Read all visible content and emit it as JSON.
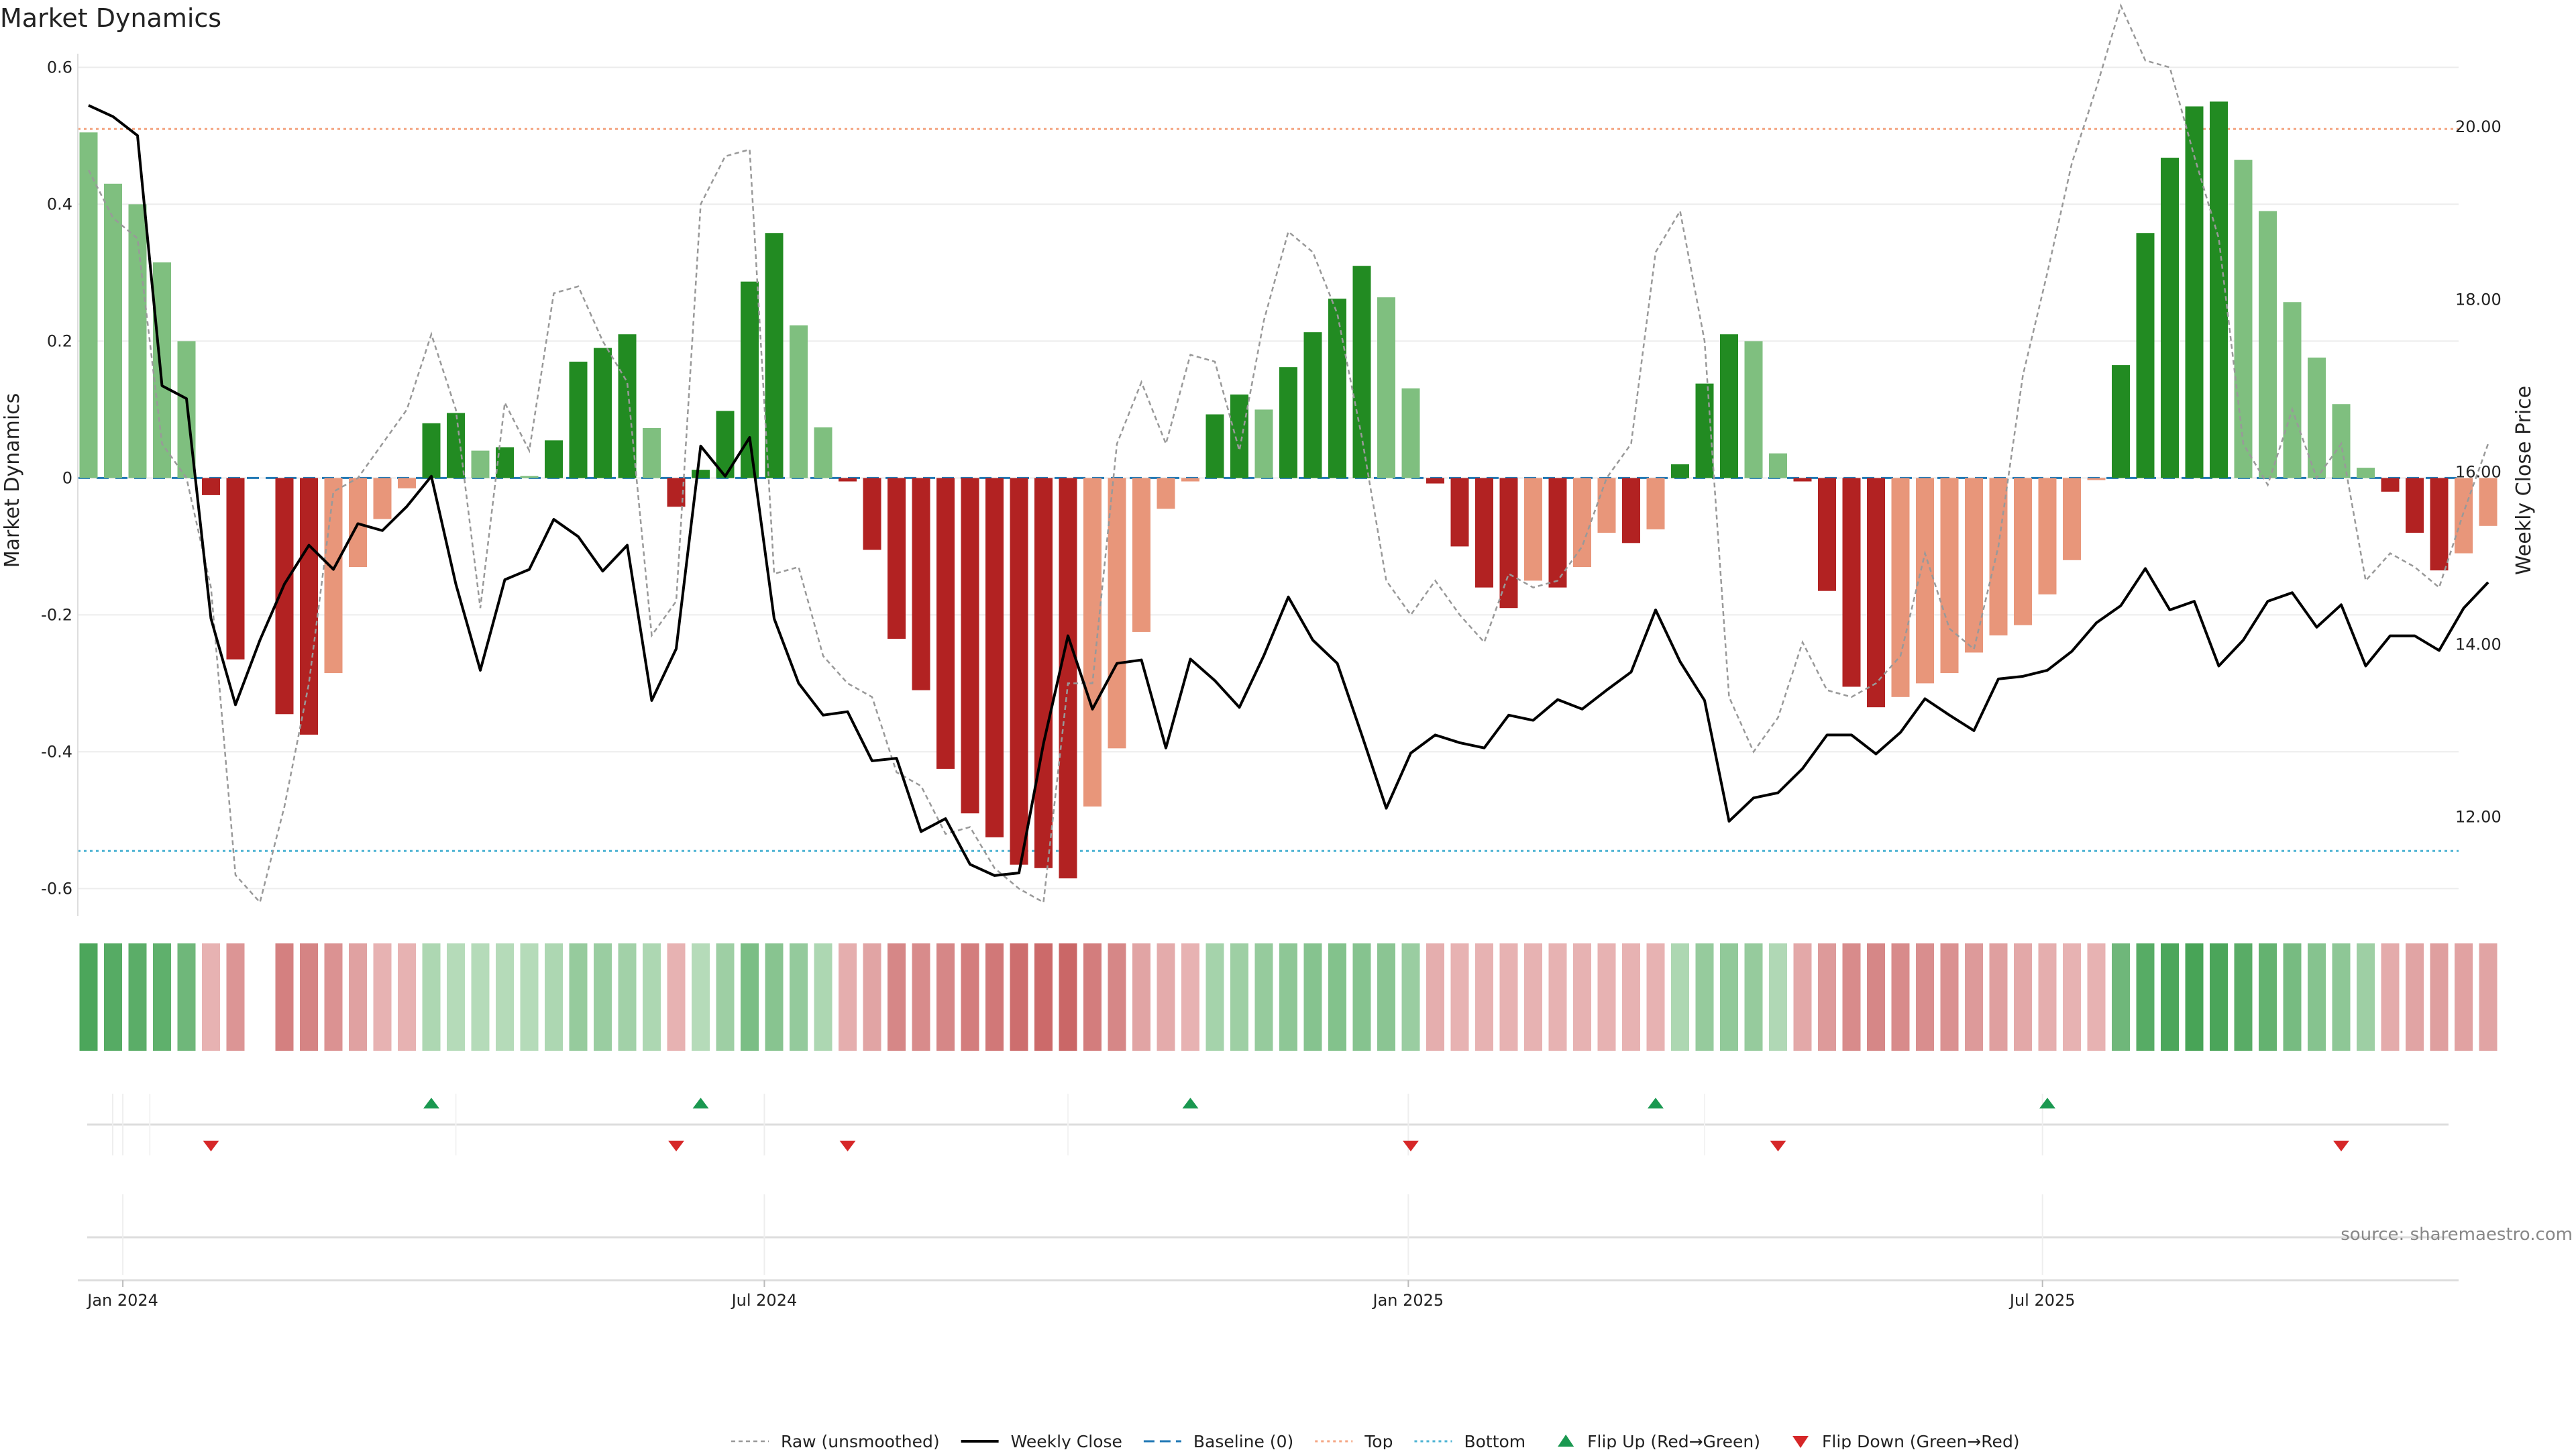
{
  "chart_data": {
    "type": "bar",
    "title": "Market Dynamics",
    "ylabel_left": "Market Dynamics",
    "ylabel_right": "Weekly Close Price",
    "source": "source: sharemaestro.com",
    "ylim_left": [
      -0.63,
      0.62
    ],
    "ylim_right": [
      10.93,
      20.85
    ],
    "y_ticks_left": [
      "0.6",
      "0.4",
      "0.2",
      "0",
      "-0.2",
      "-0.4",
      "-0.6"
    ],
    "y_ticks_right": [
      "20.00",
      "18.00",
      "16.00",
      "14.00",
      "12.00"
    ],
    "x_ticks": [
      {
        "label": "Jan 2024",
        "week": 1.4
      },
      {
        "label": "Jul 2024",
        "week": 27.6
      },
      {
        "label": "Jan 2025",
        "week": 53.9
      },
      {
        "label": "Jul 2025",
        "week": 79.8
      }
    ],
    "top_level": 0.51,
    "bottom_level": -0.545,
    "baseline": 0,
    "colors": {
      "strong_green": "#228b22",
      "weak_green": "#7fbf7f",
      "strong_red": "#b22222",
      "weak_red": "#e8967a",
      "close_line": "#000000",
      "raw_line": "#999999",
      "top_line": "#f4a582",
      "bottom_line": "#4eb3d3",
      "baseline_line": "#1f77b4",
      "flip_up": "#1a9850",
      "flip_down": "#d62728"
    },
    "series": [
      {
        "name": "Market Dynamics",
        "values": [
          0.505,
          0.43,
          0.4,
          0.315,
          0.2,
          -0.025,
          -0.265,
          0,
          -0.345,
          -0.375,
          -0.285,
          -0.13,
          -0.06,
          -0.015,
          0.08,
          0.095,
          0.04,
          0.045,
          0.003,
          0.055,
          0.17,
          0.19,
          0.21,
          0.073,
          -0.042,
          0.012,
          0.098,
          0.287,
          0.358,
          0.223,
          0.074,
          -0.005,
          -0.105,
          -0.235,
          -0.31,
          -0.425,
          -0.49,
          -0.525,
          -0.565,
          -0.57,
          -0.585,
          -0.48,
          -0.395,
          -0.225,
          -0.045,
          -0.005,
          0.093,
          0.122,
          0.1,
          0.162,
          0.213,
          0.262,
          0.31,
          0.264,
          0.131,
          -0.008,
          -0.1,
          -0.16,
          -0.19,
          -0.15,
          -0.16,
          -0.13,
          -0.08,
          -0.095,
          -0.075,
          0.02,
          0.138,
          0.21,
          0.2,
          0.036,
          -0.005,
          -0.165,
          -0.305,
          -0.335,
          -0.32,
          -0.3,
          -0.285,
          -0.255,
          -0.23,
          -0.215,
          -0.17,
          -0.12,
          -0.003,
          0.165,
          0.358,
          0.468,
          0.543,
          0.55,
          0.465,
          0.39,
          0.257,
          0.176,
          0.108,
          0.015,
          -0.02,
          -0.08,
          -0.135,
          -0.11,
          -0.07
        ],
        "strength": [
          0.92,
          0.86,
          0.83,
          0.8,
          0.7,
          0.25,
          0.45,
          0,
          0.6,
          0.57,
          0.47,
          0.37,
          0.25,
          0.25,
          0.3,
          0.25,
          0.25,
          0.25,
          0.25,
          0.3,
          0.45,
          0.42,
          0.37,
          0.3,
          0.25,
          0.25,
          0.4,
          0.62,
          0.54,
          0.46,
          0.3,
          0.28,
          0.35,
          0.55,
          0.52,
          0.55,
          0.62,
          0.65,
          0.72,
          0.75,
          0.77,
          0.62,
          0.55,
          0.35,
          0.3,
          0.25,
          0.35,
          0.4,
          0.45,
          0.5,
          0.55,
          0.57,
          0.55,
          0.52,
          0.42,
          0.28,
          0.25,
          0.25,
          0.25,
          0.25,
          0.25,
          0.25,
          0.25,
          0.25,
          0.25,
          0.3,
          0.45,
          0.48,
          0.45,
          0.28,
          0.32,
          0.42,
          0.52,
          0.55,
          0.52,
          0.5,
          0.48,
          0.42,
          0.38,
          0.32,
          0.28,
          0.25,
          0.25,
          0.7,
          0.85,
          0.92,
          0.95,
          0.93,
          0.84,
          0.77,
          0.65,
          0.55,
          0.5,
          0.4,
          0.3,
          0.35,
          0.38,
          0.36,
          0.35
        ]
      },
      {
        "name": "Weekly Close",
        "values": [
          20.25,
          20.12,
          19.9,
          17.0,
          16.85,
          14.3,
          13.3,
          14.05,
          14.7,
          15.15,
          14.87,
          15.4,
          15.32,
          15.6,
          15.95,
          14.7,
          13.7,
          14.75,
          14.87,
          15.45,
          15.25,
          14.85,
          15.15,
          13.35,
          13.95,
          16.3,
          15.95,
          16.4,
          14.3,
          13.55,
          13.18,
          13.22,
          12.65,
          12.68,
          11.83,
          11.98,
          11.45,
          11.32,
          11.35,
          12.85,
          14.1,
          13.25,
          13.78,
          13.82,
          12.8,
          13.83,
          13.58,
          13.27,
          13.87,
          14.55,
          14.05,
          13.78,
          12.95,
          12.1,
          12.74,
          12.95,
          12.86,
          12.8,
          13.18,
          13.12,
          13.36,
          13.25,
          13.47,
          13.68,
          14.4,
          13.8,
          13.35,
          11.95,
          12.22,
          12.28,
          12.56,
          12.95,
          12.95,
          12.73,
          12.98,
          13.37,
          13.18,
          13.0,
          13.6,
          13.63,
          13.7,
          13.92,
          14.25,
          14.45,
          14.88,
          14.4,
          14.5,
          13.75,
          14.05,
          14.5,
          14.6,
          14.2,
          14.46,
          13.75,
          14.1,
          14.1,
          13.93,
          14.42,
          14.72
        ]
      },
      {
        "name": "Raw (unsmoothed)",
        "values": [
          0.45,
          0.38,
          0.35,
          0.05,
          0.0,
          -0.16,
          -0.58,
          -0.62,
          -0.48,
          -0.3,
          -0.02,
          0.0,
          0.05,
          0.1,
          0.21,
          0.1,
          -0.19,
          0.11,
          0.04,
          0.27,
          0.28,
          0.2,
          0.14,
          -0.23,
          -0.18,
          0.4,
          0.47,
          0.48,
          -0.14,
          -0.13,
          -0.26,
          -0.3,
          -0.32,
          -0.43,
          -0.45,
          -0.52,
          -0.51,
          -0.57,
          -0.6,
          -0.62,
          -0.3,
          -0.3,
          0.05,
          0.14,
          0.05,
          0.18,
          0.17,
          0.04,
          0.23,
          0.36,
          0.33,
          0.24,
          0.06,
          -0.15,
          -0.2,
          -0.15,
          -0.2,
          -0.24,
          -0.14,
          -0.16,
          -0.15,
          -0.1,
          0.0,
          0.05,
          0.33,
          0.39,
          0.2,
          -0.32,
          -0.4,
          -0.35,
          -0.24,
          -0.31,
          -0.32,
          -0.3,
          -0.26,
          -0.11,
          -0.22,
          -0.25,
          -0.1,
          0.15,
          0.3,
          0.46,
          0.57,
          0.69,
          0.61,
          0.6,
          0.47,
          0.35,
          0.05,
          -0.01,
          0.1,
          0.0,
          0.05,
          -0.15,
          -0.11,
          -0.13,
          -0.16,
          -0.05,
          0.05
        ]
      }
    ],
    "flip_up_weeks": [
      14,
      25,
      45,
      64,
      80
    ],
    "flip_down_weeks": [
      5,
      24,
      31,
      54,
      69,
      92
    ],
    "legend": {
      "raw": "Raw (unsmoothed)",
      "close": "Weekly Close",
      "baseline": "Baseline (0)",
      "top": "Top",
      "bottom": "Bottom",
      "flip_up": "Flip Up (Red→Green)",
      "flip_down": "Flip Down (Green→Red)"
    }
  }
}
